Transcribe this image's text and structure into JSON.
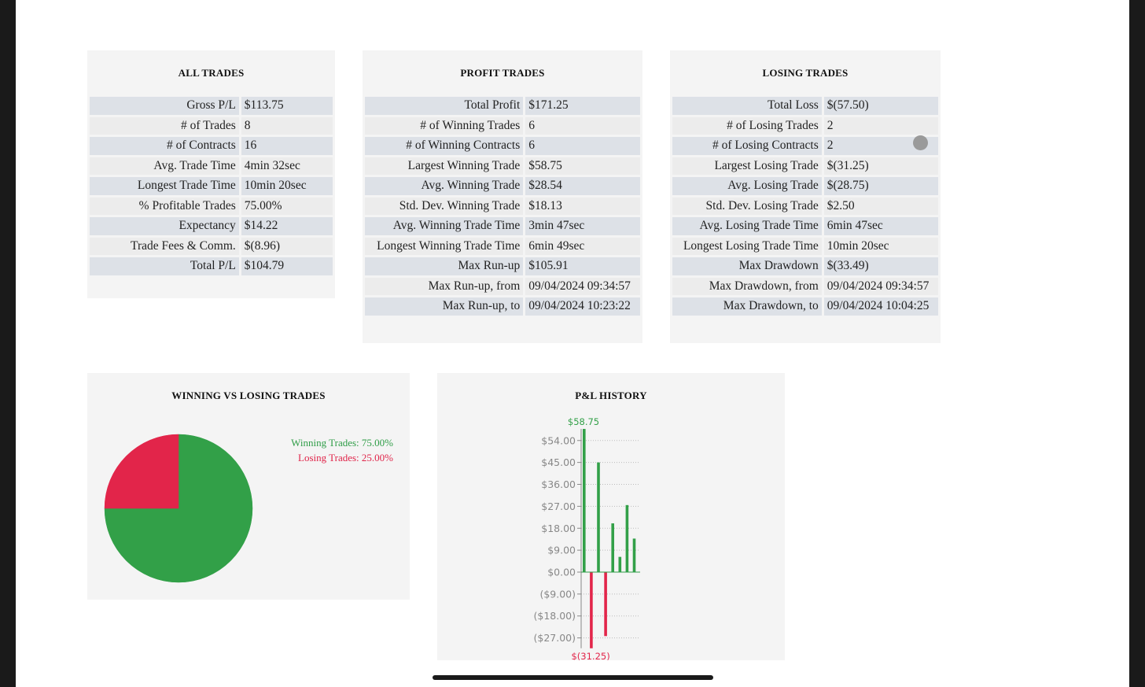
{
  "all_trades": {
    "title": "ALL TRADES",
    "rows": [
      {
        "label": "Gross P/L",
        "value": "$113.75"
      },
      {
        "label": "# of Trades",
        "value": "8"
      },
      {
        "label": "# of Contracts",
        "value": "16"
      },
      {
        "label": "Avg. Trade Time",
        "value": "4min 32sec"
      },
      {
        "label": "Longest Trade Time",
        "value": "10min 20sec"
      },
      {
        "label": "% Profitable Trades",
        "value": "75.00%"
      },
      {
        "label": "Expectancy",
        "value": "$14.22"
      },
      {
        "label": "Trade Fees & Comm.",
        "value": "$(8.96)"
      },
      {
        "label": "Total P/L",
        "value": "$104.79"
      }
    ]
  },
  "profit_trades": {
    "title": "PROFIT TRADES",
    "rows": [
      {
        "label": "Total Profit",
        "value": "$171.25"
      },
      {
        "label": "# of Winning Trades",
        "value": "6"
      },
      {
        "label": "# of Winning Contracts",
        "value": "6"
      },
      {
        "label": "Largest Winning Trade",
        "value": "$58.75"
      },
      {
        "label": "Avg. Winning Trade",
        "value": "$28.54"
      },
      {
        "label": "Std. Dev. Winning Trade",
        "value": "$18.13"
      },
      {
        "label": "Avg. Winning Trade Time",
        "value": "3min 47sec"
      },
      {
        "label": "Longest Winning Trade Time",
        "value": "6min 49sec"
      },
      {
        "label": "Max Run-up",
        "value": "$105.91"
      },
      {
        "label": "Max Run-up, from",
        "value": "09/04/2024 09:34:57"
      },
      {
        "label": "Max Run-up, to",
        "value": "09/04/2024 10:23:22"
      }
    ]
  },
  "losing_trades": {
    "title": "LOSING TRADES",
    "rows": [
      {
        "label": "Total Loss",
        "value": "$(57.50)"
      },
      {
        "label": "# of Losing Trades",
        "value": "2"
      },
      {
        "label": "# of Losing Contracts",
        "value": "2"
      },
      {
        "label": "Largest Losing Trade",
        "value": "$(31.25)"
      },
      {
        "label": "Avg. Losing Trade",
        "value": "$(28.75)"
      },
      {
        "label": "Std. Dev. Losing Trade",
        "value": "$2.50"
      },
      {
        "label": "Avg. Losing Trade Time",
        "value": "6min 47sec"
      },
      {
        "label": "Longest Losing Trade Time",
        "value": "10min 20sec"
      },
      {
        "label": "Max Drawdown",
        "value": "$(33.49)"
      },
      {
        "label": "Max Drawdown, from",
        "value": "09/04/2024 09:34:57"
      },
      {
        "label": "Max Drawdown, to",
        "value": "09/04/2024 10:04:25"
      }
    ]
  },
  "colors": {
    "win": "#32a048",
    "lose": "#e2254a"
  },
  "chart_data": [
    {
      "type": "pie",
      "title": "WINNING VS LOSING TRADES",
      "slices": [
        {
          "label": "Winning Trades: 75.00%",
          "value": 75,
          "color": "#32a048"
        },
        {
          "label": "Losing Trades: 25.00%",
          "value": 25,
          "color": "#e2254a"
        }
      ]
    },
    {
      "type": "bar",
      "title": "P&L HISTORY",
      "values": [
        58.75,
        -31.25,
        45.0,
        -26.25,
        20.0,
        6.25,
        27.5,
        13.75
      ],
      "ylim": [
        -31.25,
        58.75
      ],
      "yticks": [
        {
          "value": 54,
          "label": "$54.00"
        },
        {
          "value": 45,
          "label": "$45.00"
        },
        {
          "value": 36,
          "label": "$36.00"
        },
        {
          "value": 27,
          "label": "$27.00"
        },
        {
          "value": 18,
          "label": "$18.00"
        },
        {
          "value": 9,
          "label": "$9.00"
        },
        {
          "value": 0,
          "label": "$0.00"
        },
        {
          "value": -9,
          "label": "($9.00)"
        },
        {
          "value": -18,
          "label": "($18.00)"
        },
        {
          "value": -27,
          "label": "($27.00)"
        }
      ],
      "max_label": "$58.75",
      "min_label": "$(31.25)",
      "grid": true
    }
  ]
}
